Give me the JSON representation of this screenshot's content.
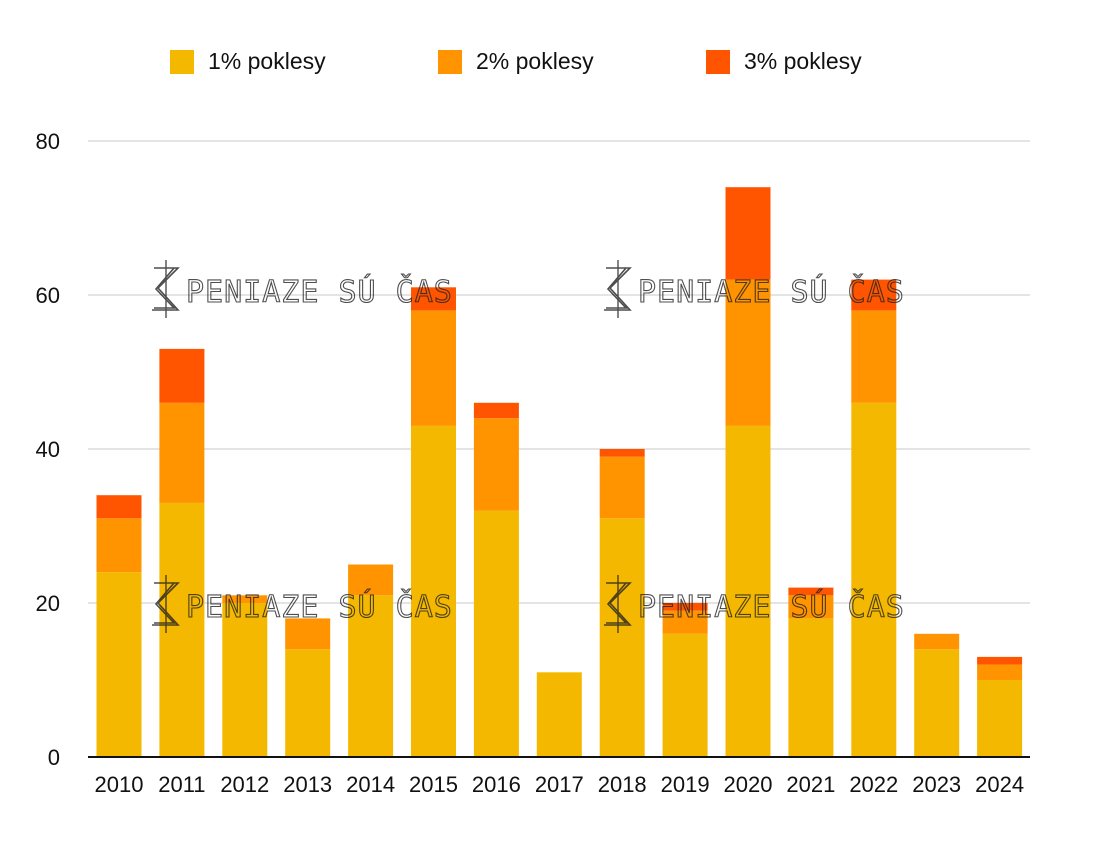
{
  "watermark": "PENIAZE SÚ ČAS",
  "chart_data": {
    "type": "bar",
    "stacked": true,
    "categories": [
      "2010",
      "2011",
      "2012",
      "2013",
      "2014",
      "2015",
      "2016",
      "2017",
      "2018",
      "2019",
      "2020",
      "2021",
      "2022",
      "2023",
      "2024"
    ],
    "series": [
      {
        "name": "1% poklesy",
        "color": "#F5B800",
        "values": [
          24,
          33,
          20,
          14,
          21,
          43,
          32,
          11,
          31,
          16,
          43,
          18,
          46,
          14,
          10
        ]
      },
      {
        "name": "2% poklesy",
        "color": "#FF9300",
        "values": [
          7,
          13,
          1,
          4,
          4,
          15,
          12,
          0,
          8,
          3,
          19,
          3,
          12,
          2,
          2
        ]
      },
      {
        "name": "3% poklesy",
        "color": "#FF5500",
        "values": [
          3,
          7,
          0,
          0,
          0,
          3,
          2,
          0,
          1,
          1,
          12,
          1,
          4,
          0,
          1
        ]
      }
    ],
    "yticks": [
      0,
      20,
      40,
      60,
      80
    ],
    "ylim": [
      0,
      80
    ],
    "grid": true,
    "legend": "top"
  }
}
